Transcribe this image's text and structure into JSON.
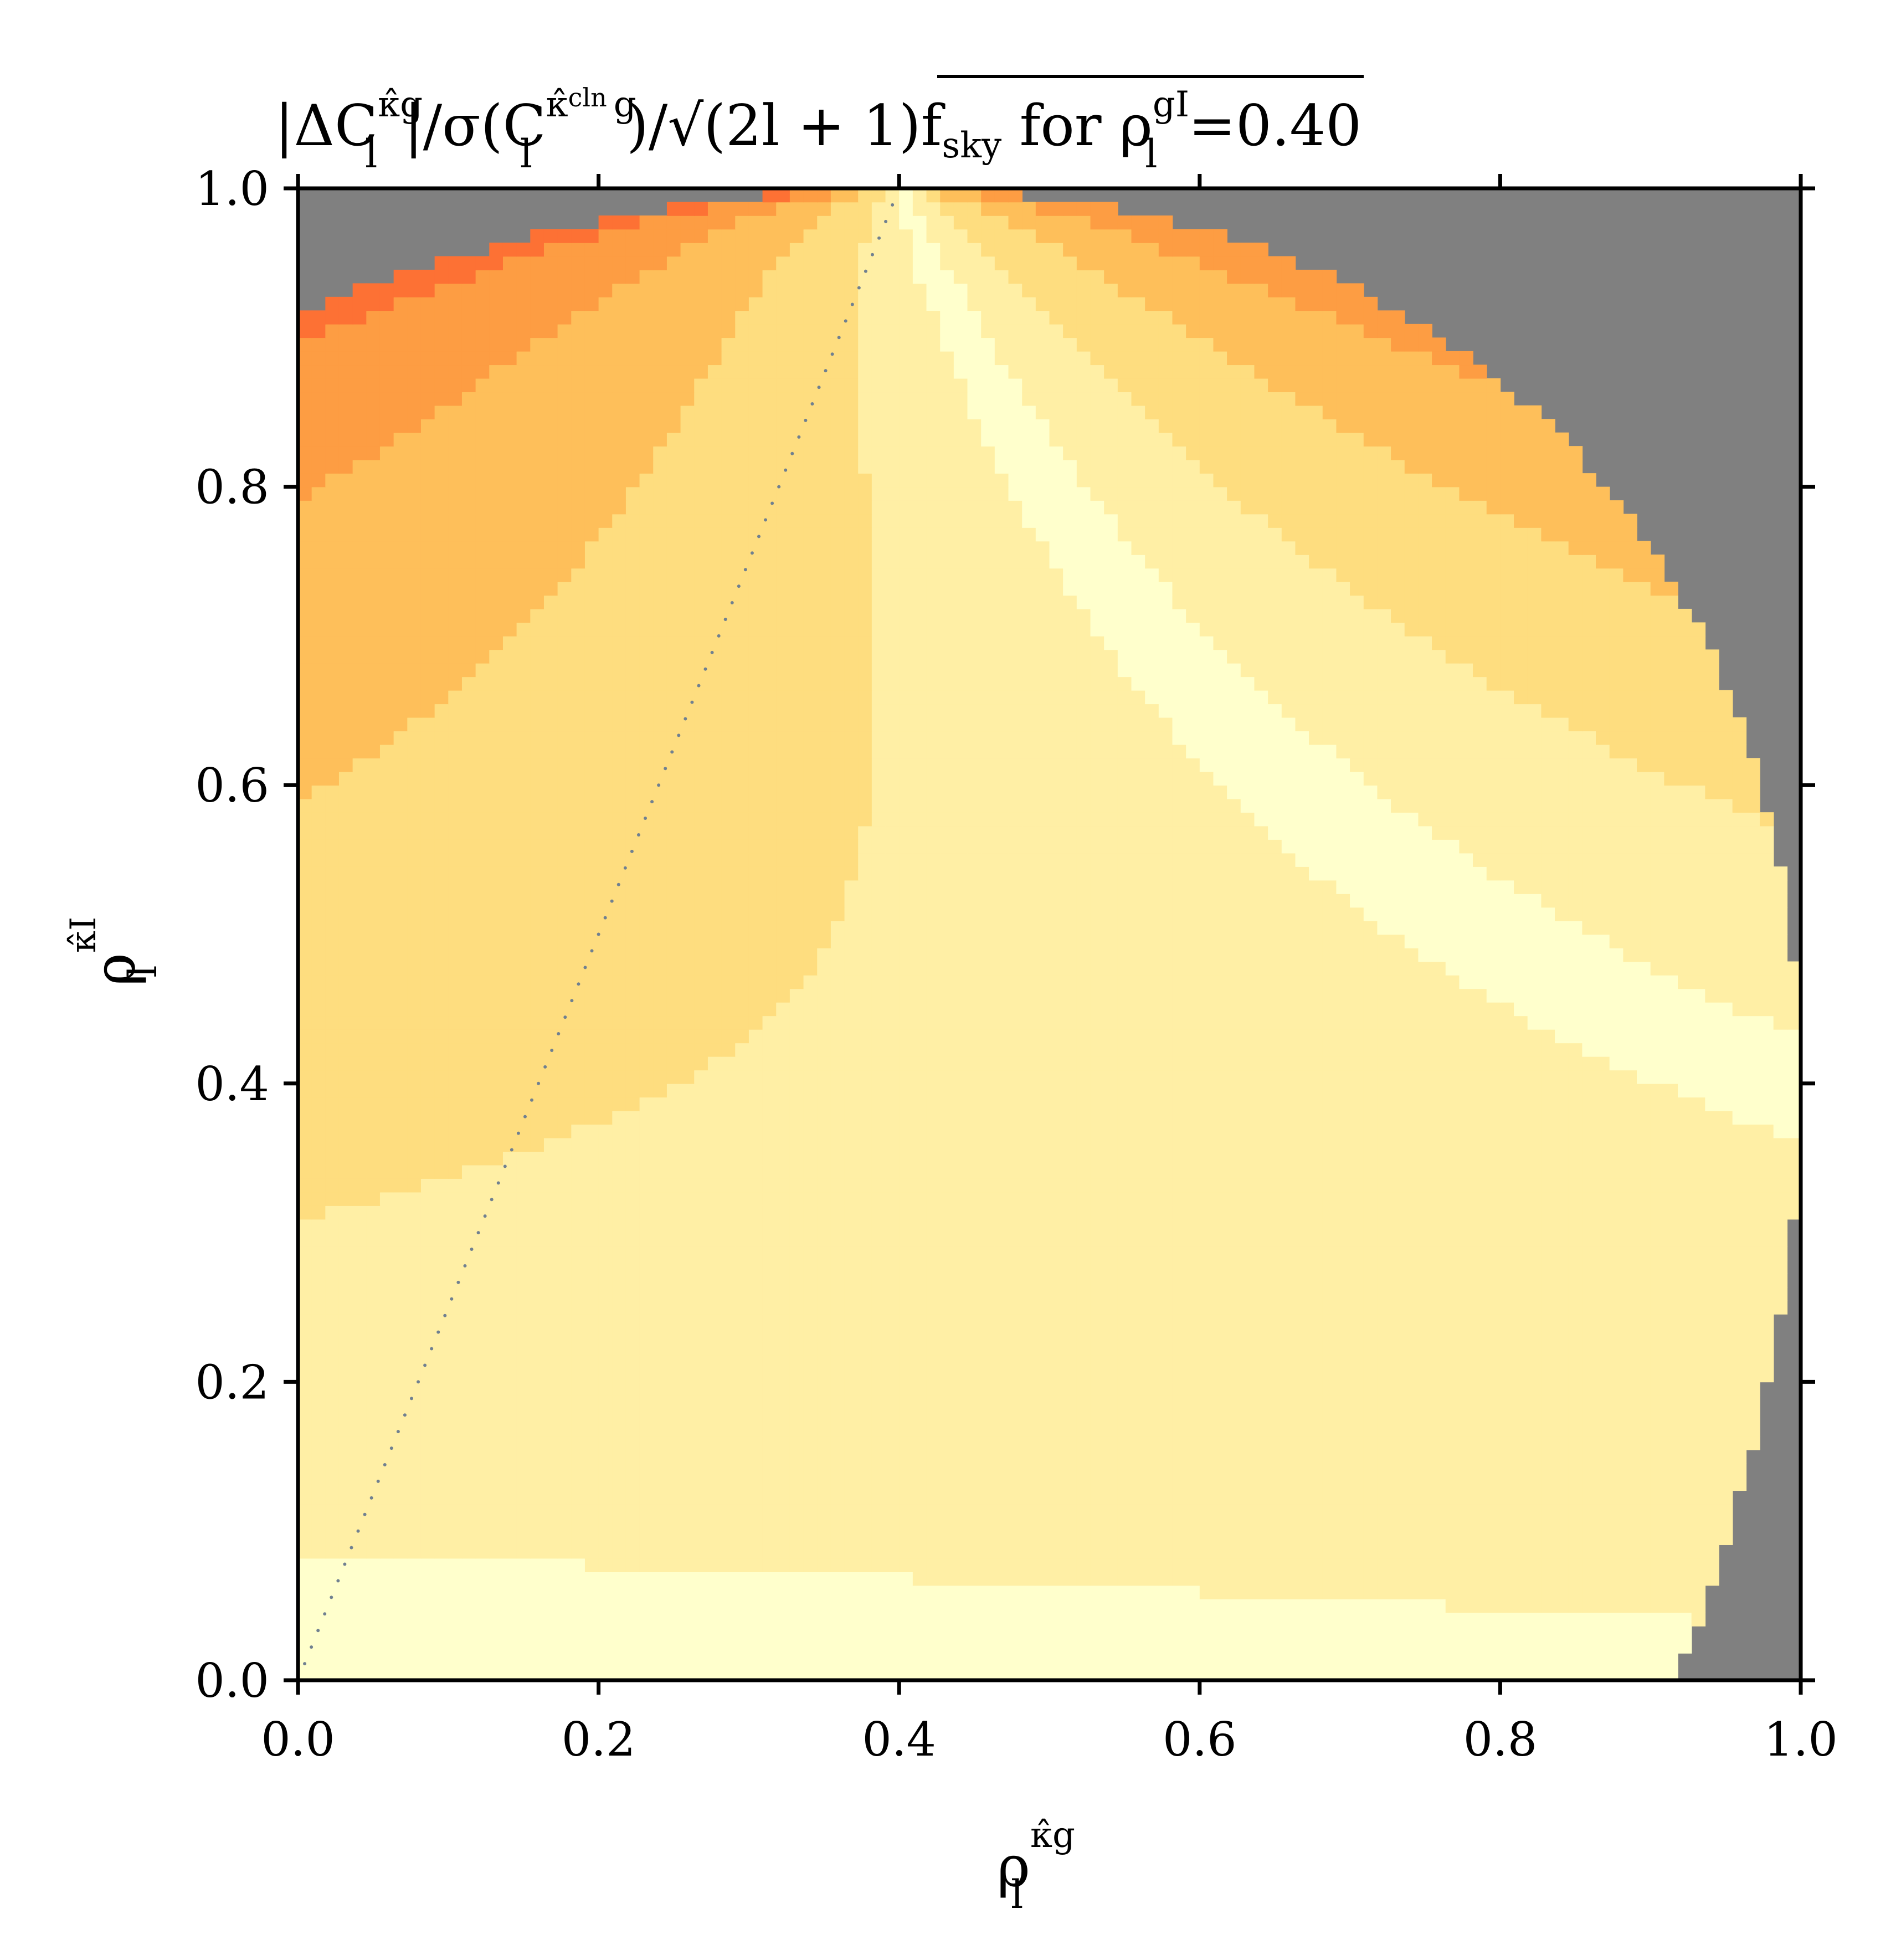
{
  "chart_data": {
    "type": "heatmap",
    "title": {
      "text": "|ΔC",
      "sup1": "κ̂g",
      "sub1": "l",
      "middle": "|/σ(C",
      "sup2": "κ̂",
      "sup2b": "cln",
      "sup2c": "g",
      "sub2": "l",
      "close": ")/",
      "sqrt_body": "(2l + 1)f",
      "sqrt_sub": "sky",
      "suffix": " for ρ",
      "sup3": "gI",
      "sub3": "l",
      "value": "=0.40"
    },
    "xlabel": {
      "base": "ρ",
      "sup": "κ̂g",
      "sub": "l"
    },
    "ylabel": {
      "base": "ρ",
      "sup": "κ̂I",
      "sub": "l"
    },
    "xlim": [
      0.0,
      1.0
    ],
    "ylim": [
      0.0,
      1.0
    ],
    "xticks": [
      "0.0",
      "0.2",
      "0.4",
      "0.6",
      "0.8",
      "1.0"
    ],
    "yticks": [
      "0.0",
      "0.2",
      "0.4",
      "0.6",
      "0.8",
      "1.0"
    ],
    "rho_gI": 0.4,
    "colormap": "YlOrRd",
    "levels": 10,
    "max_abs_corr": 0.92,
    "invalid_region_color": "#808080",
    "dotted_line": {
      "x": [
        0.0,
        0.4
      ],
      "y": [
        0.0,
        1.0
      ],
      "color": "#708090"
    }
  }
}
